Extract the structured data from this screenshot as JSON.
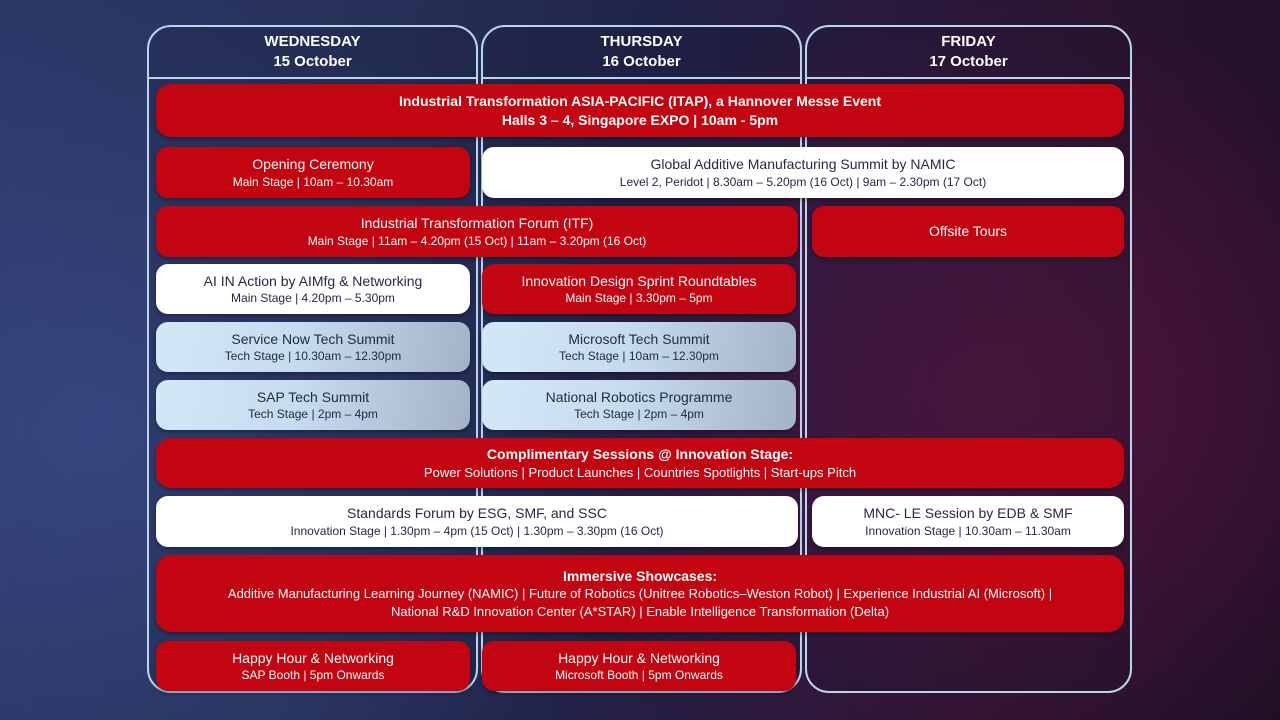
{
  "columns": [
    {
      "day": "WEDNESDAY",
      "date": "15 October"
    },
    {
      "day": "THURSDAY",
      "date": "16 October"
    },
    {
      "day": "FRIDAY",
      "date": "17 October"
    }
  ],
  "events": {
    "itap": {
      "title": "Industrial Transformation ASIA-PACIFIC (ITAP), a Hannover Messe Event",
      "details": "Halls 3 – 4, Singapore EXPO | 10am - 5pm"
    },
    "opening": {
      "title": "Opening Ceremony",
      "details": "Main Stage | 10am – 10.30am"
    },
    "gam": {
      "title": "Global Additive Manufacturing Summit by NAMIC",
      "details": "Level 2, Peridot | 8.30am – 5.20pm (16 Oct) | 9am – 2.30pm (17 Oct)"
    },
    "itf": {
      "title": "Industrial Transformation Forum (ITF)",
      "details": "Main Stage | 11am – 4.20pm (15 Oct) | 11am – 3.20pm (16 Oct)"
    },
    "offsite": {
      "title": "Offsite Tours"
    },
    "ai_action": {
      "title": "AI IN Action by AIMfg & Networking",
      "details": "Main Stage | 4.20pm – 5.30pm"
    },
    "sprint": {
      "title": "Innovation Design Sprint Roundtables",
      "details": "Main Stage | 3.30pm – 5pm"
    },
    "servicenow": {
      "title": "Service Now Tech Summit",
      "details": "Tech Stage | 10.30am – 12.30pm"
    },
    "microsoft": {
      "title": "Microsoft Tech Summit",
      "details": "Tech Stage | 10am – 12.30pm"
    },
    "sap": {
      "title": "SAP Tech Summit",
      "details": "Tech Stage | 2pm – 4pm"
    },
    "robotics": {
      "title": "National Robotics Programme",
      "details": "Tech Stage | 2pm – 4pm"
    },
    "complimentary": {
      "title": "Complimentary Sessions @ Innovation Stage:",
      "details": "Power Solutions | Product Launches | Countries Spotlights | Start-ups Pitch"
    },
    "standards": {
      "title": "Standards Forum by ESG, SMF, and SSC",
      "details": "Innovation Stage | 1.30pm – 4pm (15 Oct) | 1.30pm – 3.30pm (16 Oct)"
    },
    "mnc": {
      "title": "MNC- LE Session by EDB & SMF",
      "details": "Innovation Stage | 10.30am – 11.30am"
    },
    "immersive": {
      "title": "Immersive Showcases:",
      "line1": "Additive Manufacturing Learning Journey (NAMIC) | Future of Robotics (Unitree Robotics–Weston Robot) | Experience Industrial AI (Microsoft) |",
      "line2": "National R&D Innovation Center (A*STAR) | Enable Intelligence Transformation (Delta)"
    },
    "happy_sap": {
      "title": "Happy Hour & Networking",
      "details": "SAP Booth | 5pm Onwards"
    },
    "happy_ms": {
      "title": "Happy Hour & Networking",
      "details": "Microsoft Booth | 5pm Onwards"
    }
  },
  "colors": {
    "red": "#c20510",
    "white": "#ffffff",
    "border_blue": "#b9d5ec",
    "text_dark": "#232a48",
    "blue_grad_start": "#d3e8f7",
    "blue_grad_end": "#a4b2c7"
  }
}
